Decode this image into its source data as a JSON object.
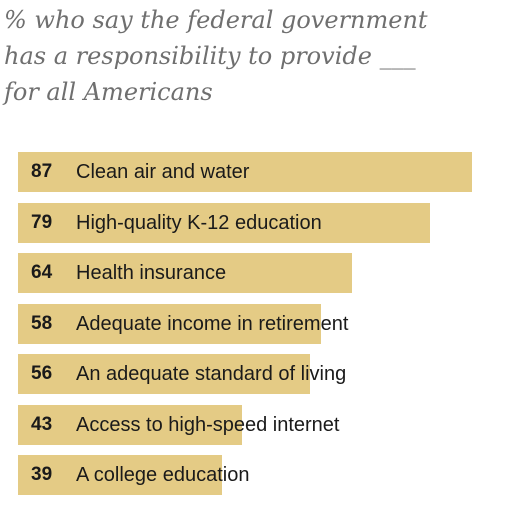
{
  "chart_data": {
    "type": "bar",
    "orientation": "horizontal",
    "title_lines": [
      "% who say the federal government",
      "has a responsibility to provide ___",
      "for all Americans"
    ],
    "categories": [
      "Clean air and water",
      "High-quality K-12 education",
      "Health insurance",
      "Adequate income in retirement",
      "An adequate standard of living",
      "Access to high-speed internet",
      "A college education"
    ],
    "values": [
      87,
      79,
      64,
      58,
      56,
      43,
      39
    ],
    "xlim": [
      0,
      100
    ],
    "grid": false,
    "legend": "none",
    "bar_color": "#e4cb85"
  }
}
